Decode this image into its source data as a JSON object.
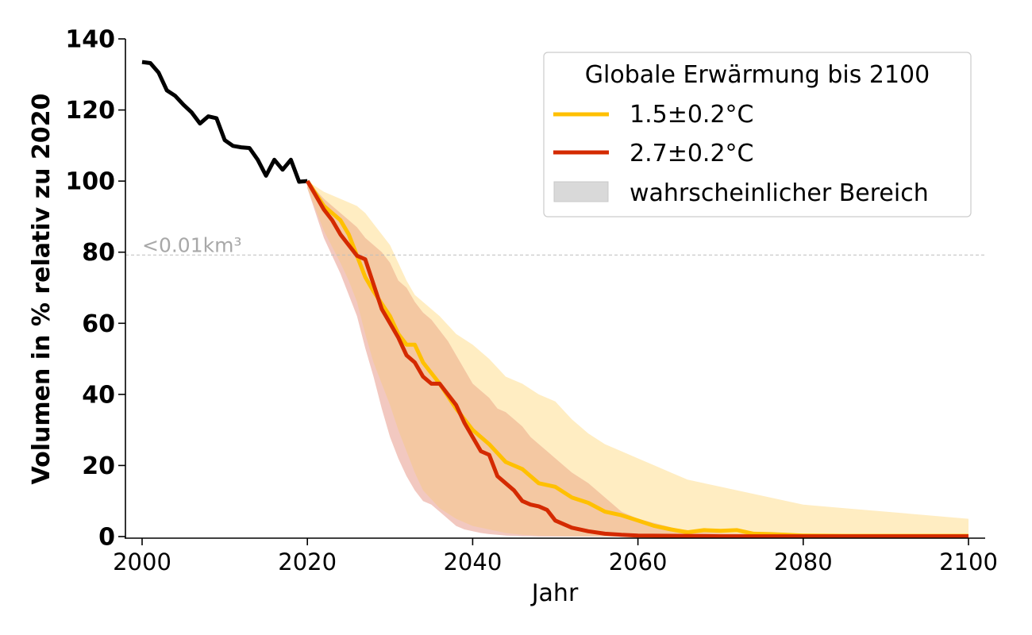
{
  "chart_data": {
    "type": "line",
    "xlabel": "Jahr",
    "ylabel": "Volumen in % relativ zu 2020",
    "xlim": [
      1998,
      2102
    ],
    "ylim": [
      0,
      140
    ],
    "xticks": [
      2000,
      2020,
      2040,
      2060,
      2080,
      2100
    ],
    "yticks": [
      0,
      20,
      40,
      60,
      80,
      100,
      120,
      140
    ],
    "grid": false,
    "legend": {
      "title": "Globale Erwärmung bis 2100",
      "position": "top-right",
      "range_label": "wahrscheinlicher Bereich"
    },
    "annotation": {
      "text": "<0.01km³",
      "y": 79.2
    },
    "colors": {
      "observed": "#000000",
      "s15": "#FFC000",
      "s27": "#D42A00",
      "band15": "#FFEDC2",
      "band27": "#F2C8C0",
      "overlap": "#F4C8A2",
      "legend_patch": "#D9D9D9",
      "annot_line": "#bdbdbd"
    },
    "observed": {
      "x": [
        2000,
        2001,
        2002,
        2003,
        2004,
        2005,
        2006,
        2007,
        2008,
        2009,
        2010,
        2011,
        2012,
        2013,
        2014,
        2015,
        2016,
        2017,
        2018,
        2019,
        2020
      ],
      "y": [
        133.5,
        133.2,
        130.5,
        125.5,
        124,
        121.5,
        119.3,
        116.2,
        118.2,
        117.7,
        111.5,
        109.9,
        109.5,
        109.3,
        106,
        101.5,
        106,
        103.2,
        106,
        99.8,
        100
      ]
    },
    "series": [
      {
        "name": "1.5±0.2°C",
        "x": [
          2020,
          2022,
          2024,
          2025,
          2026,
          2027,
          2028,
          2030,
          2031,
          2032,
          2033,
          2034,
          2036,
          2038,
          2040,
          2042,
          2044,
          2046,
          2048,
          2050,
          2052,
          2054,
          2056,
          2058,
          2060,
          2062,
          2064,
          2066,
          2068,
          2070,
          2072,
          2074,
          2076,
          2078,
          2080,
          2085,
          2090,
          2095,
          2100
        ],
        "y": [
          100,
          93,
          89,
          85,
          79,
          73,
          69,
          62,
          57,
          54,
          54,
          49,
          43,
          36,
          30,
          26,
          21,
          19,
          15,
          14,
          11,
          9.5,
          7,
          6,
          4.5,
          3,
          2,
          1.2,
          1.8,
          1.6,
          1.8,
          0.8,
          0.7,
          0.5,
          0.3,
          0.2,
          0.2,
          0.2,
          0.2
        ],
        "lower": [
          98,
          86,
          77,
          72,
          66,
          57,
          49,
          37,
          30,
          24,
          18,
          13,
          8,
          5,
          3,
          2,
          1,
          0.5,
          0.3,
          0.2,
          0.1,
          0.1,
          0.1,
          0,
          0,
          0,
          0,
          0,
          0,
          0,
          0,
          0,
          0,
          0,
          0,
          0,
          0,
          0,
          0
        ],
        "upper": [
          100,
          97,
          95,
          94,
          93,
          91,
          88,
          82,
          77,
          72,
          68,
          66,
          62,
          57,
          54,
          50,
          45,
          43,
          40,
          38,
          33,
          29,
          26,
          24,
          22,
          20,
          18,
          16,
          15,
          14,
          13,
          12,
          11,
          10,
          9,
          8,
          7,
          6,
          5
        ]
      },
      {
        "name": "2.7±0.2°C",
        "x": [
          2020,
          2022,
          2023,
          2024,
          2025,
          2026,
          2027,
          2028,
          2029,
          2030,
          2031,
          2032,
          2033,
          2034,
          2035,
          2036,
          2037,
          2038,
          2039,
          2040,
          2041,
          2042,
          2043,
          2044,
          2045,
          2046,
          2047,
          2048,
          2049,
          2050,
          2052,
          2054,
          2056,
          2058,
          2060,
          2065,
          2070,
          2080,
          2090,
          2100
        ],
        "y": [
          100,
          92,
          89,
          85,
          82,
          79,
          78,
          71,
          64,
          60,
          56,
          51,
          49,
          45,
          43,
          43,
          40,
          37,
          32,
          28,
          24,
          23,
          17,
          15,
          13,
          10,
          9,
          8.5,
          7.5,
          4.5,
          2.5,
          1.5,
          0.8,
          0.5,
          0.3,
          0.2,
          0.1,
          0.1,
          0.1,
          0.1
        ],
        "lower": [
          98,
          84,
          79,
          74,
          68,
          62,
          53,
          45,
          36,
          28,
          22,
          17,
          13,
          10,
          9,
          7,
          5,
          3,
          2,
          1.5,
          1,
          0.7,
          0.5,
          0.3,
          0.2,
          0.1,
          0.1,
          0,
          0,
          0,
          0,
          0,
          0,
          0,
          0,
          0,
          0,
          0,
          0,
          0
        ],
        "upper": [
          100,
          95,
          93,
          91,
          89,
          87,
          84,
          82,
          80,
          77,
          72,
          70,
          66,
          63,
          61,
          58,
          55,
          51,
          47,
          43,
          41,
          39,
          36,
          35,
          33,
          31,
          28,
          26,
          24,
          22,
          18,
          15,
          11,
          7,
          5,
          2,
          1,
          0.5,
          0.2,
          0.1
        ]
      }
    ]
  }
}
